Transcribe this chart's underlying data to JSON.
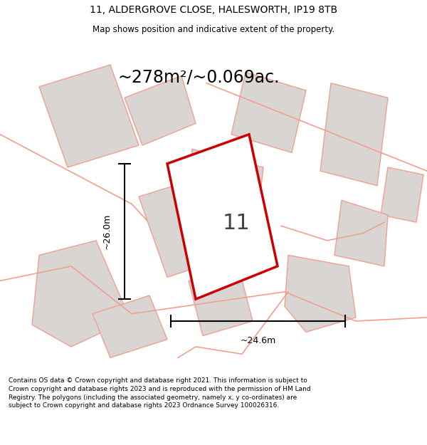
{
  "title_line1": "11, ALDERGROVE CLOSE, HALESWORTH, IP19 8TB",
  "title_line2": "Map shows position and indicative extent of the property.",
  "area_text": "~278m²/~0.069ac.",
  "property_number": "11",
  "dim_horizontal": "~24.6m",
  "dim_vertical": "~26.0m",
  "footer_text": "Contains OS data © Crown copyright and database right 2021. This information is subject to Crown copyright and database rights 2023 and is reproduced with the permission of HM Land Registry. The polygons (including the associated geometry, namely x, y co-ordinates) are subject to Crown copyright and database rights 2023 Ordnance Survey 100026316.",
  "bg_color": "#ffffff",
  "map_bg_color": "#ffffff",
  "property_fill": "#ffffff",
  "property_edge": "#cc0000",
  "neighbor_fill": "#d8d5d2",
  "neighbor_edge": "#f0a090",
  "road_color": "#f0a090"
}
